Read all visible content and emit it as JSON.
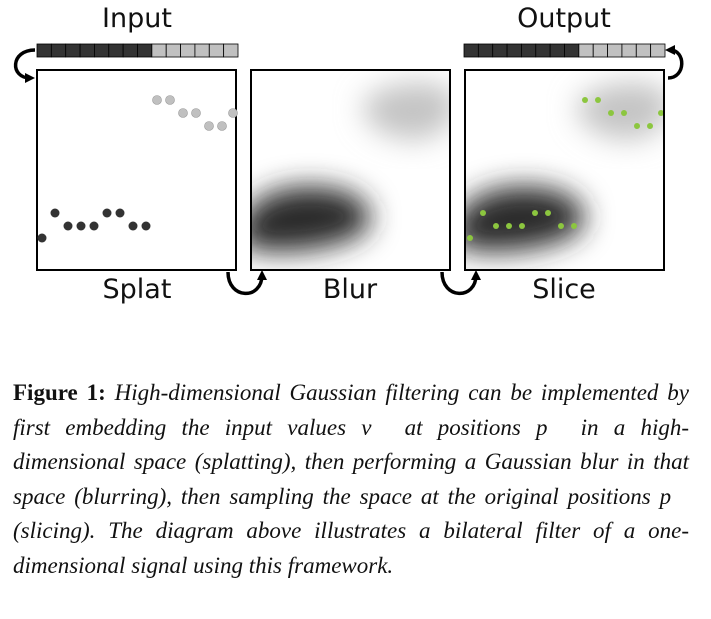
{
  "figure": {
    "labels": {
      "input": "Input",
      "output": "Output",
      "splat": "Splat",
      "blur": "Blur",
      "slice": "Slice"
    },
    "colors": {
      "dark_point": "#333333",
      "light_point": "#c0c0c0",
      "output_point": "#8cc63f",
      "dark_blob": "#2a2a2a",
      "light_blob": "#c4c4c4",
      "panel_border": "#000000"
    },
    "icons": [
      "curved-arrow-icon"
    ]
  },
  "caption": {
    "label": "Figure 1:",
    "text": "High-dimensional Gaussian filtering can be implemented by first embedding the input values v⃗ at positions p⃗ in a high-dimensional space (splatting), then performing a Gaussian blur in that space (blurring), then sampling the space at the original positions p⃗ (slicing). The diagram above illustrates a bilateral filter of a one-dimensional signal using this framework."
  }
}
